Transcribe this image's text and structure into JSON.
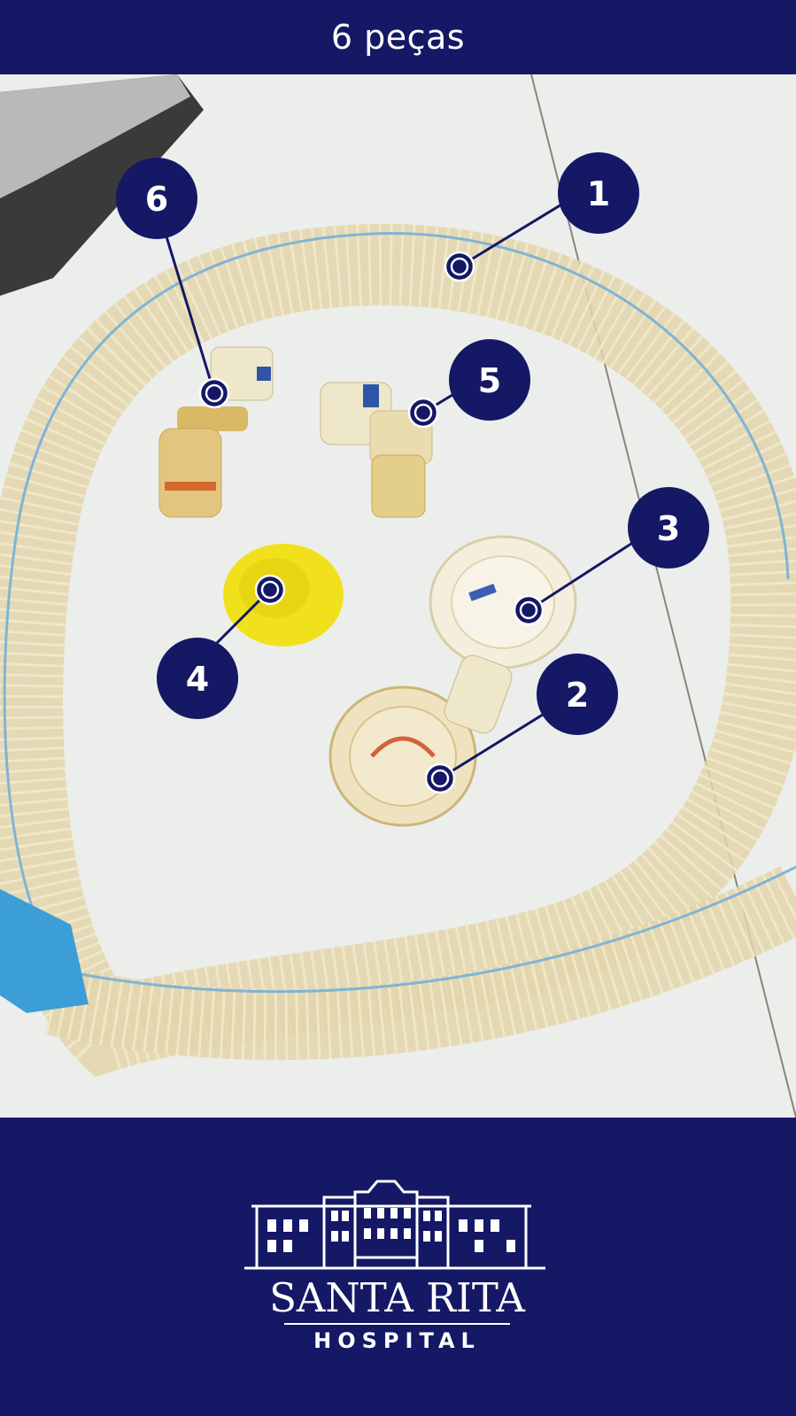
{
  "header": {
    "title": "6 peças"
  },
  "markers": [
    {
      "id": "1",
      "label": "1"
    },
    {
      "id": "2",
      "label": "2"
    },
    {
      "id": "3",
      "label": "3"
    },
    {
      "id": "4",
      "label": "4"
    },
    {
      "id": "5",
      "label": "5"
    },
    {
      "id": "6",
      "label": "6"
    }
  ],
  "logo": {
    "name": "SANTA RITA",
    "sub": "HOSPITAL"
  },
  "colors": {
    "brand_navy": "#141865",
    "tube": "#e9dfbf",
    "tube_stripe": "#7fb4d6",
    "cap_yellow": "#f1e11c",
    "connector_blue": "#3b9ed6"
  }
}
